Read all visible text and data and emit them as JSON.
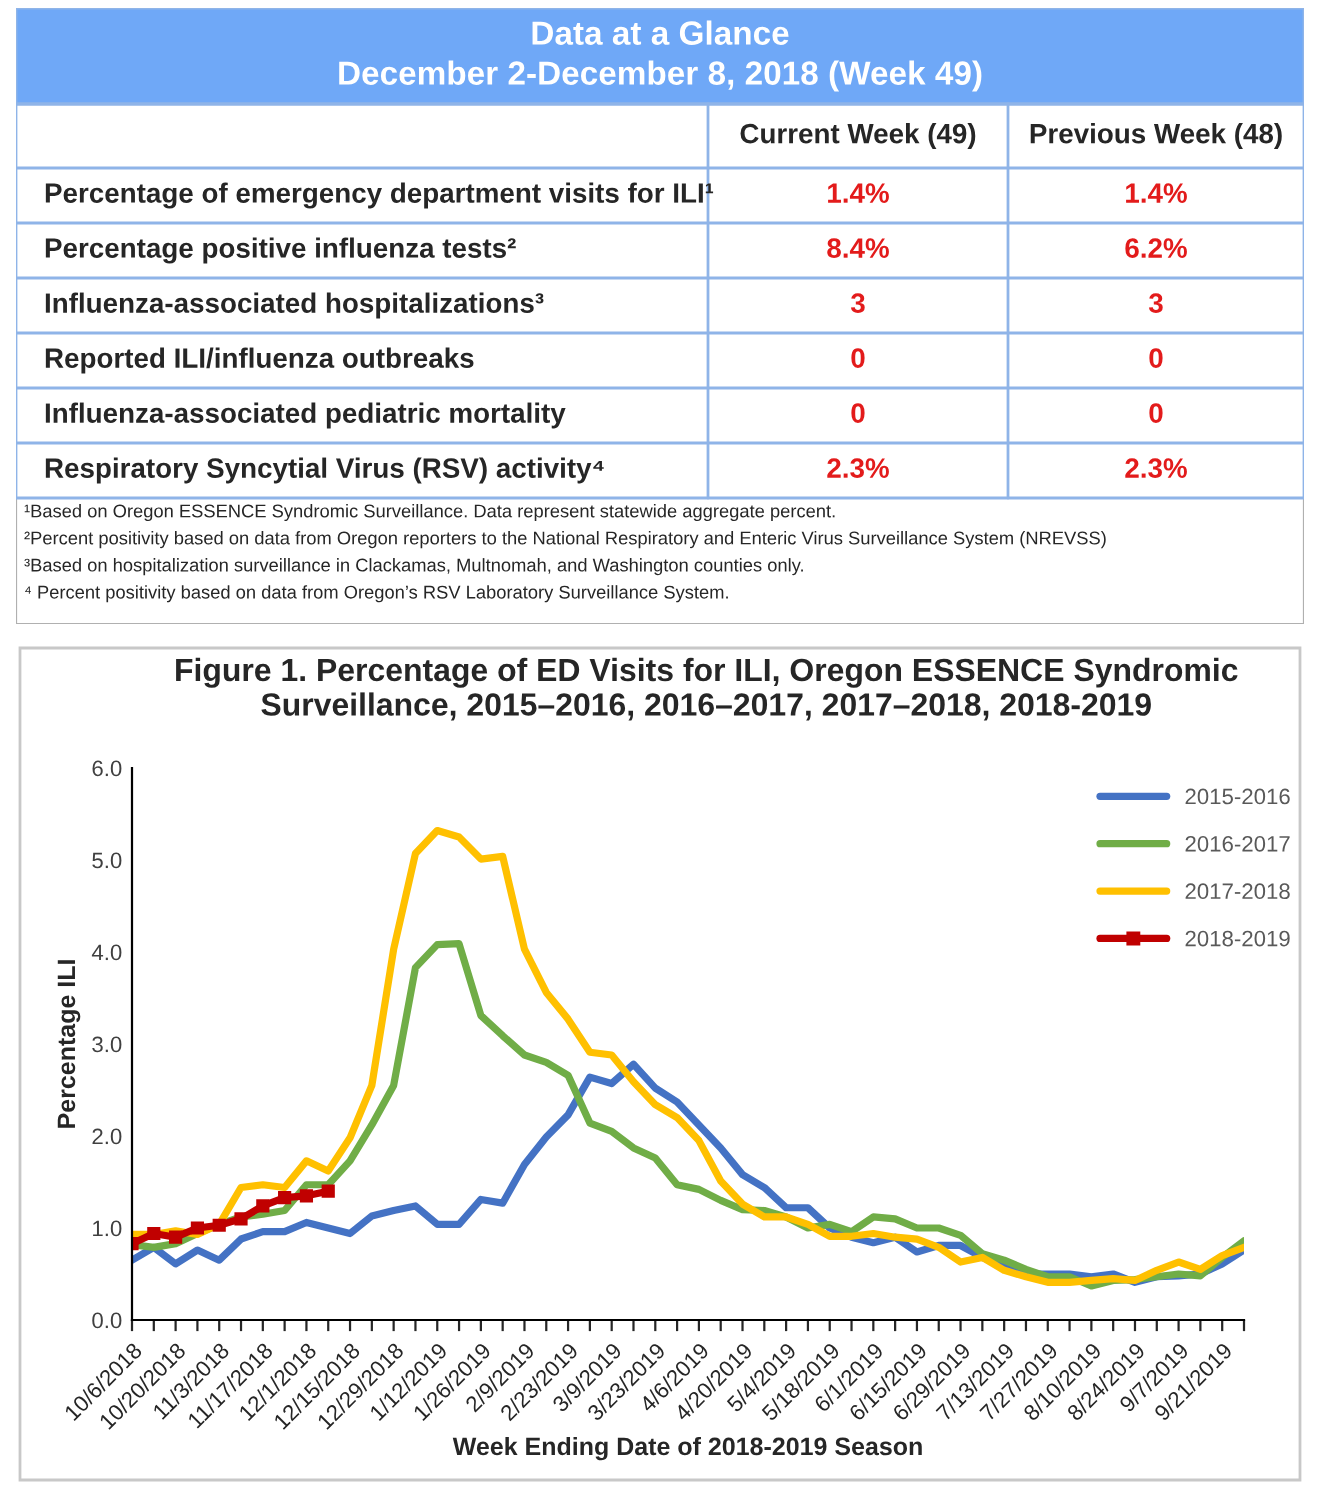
{
  "chart_data": [
    {
      "type": "other",
      "title": "Data at a Glance",
      "subtitle": "December 2-December 8, 2018 (Week 49)",
      "categories": [
        null,
        "Current Week (49)",
        "Previous Week (48)"
      ],
      "y_categories": [
        "Percentage of emergency department visits for ILI¹",
        "Percentage positive influenza tests²",
        "Influenza-associated hospitalizations³",
        "Reported ILI/influenza outbreaks",
        "Influenza-associated pediatric mortality",
        "Respiratory Syncytial Virus (RSV) activity⁴"
      ],
      "cell_labels": [
        [
          "1.4%",
          "1.4%"
        ],
        [
          "8.4%",
          "6.2%"
        ],
        [
          "3",
          "3"
        ],
        [
          "0",
          "0"
        ],
        [
          "0",
          "0"
        ],
        [
          "2.3%",
          "2.3%"
        ]
      ],
      "annotations": [
        "¹Based on Oregon ESSENCE Syndromic Surveillance. Data represent statewide aggregate percent.",
        "²Percent positivity based on data from Oregon reporters to the National Respiratory and Enteric Virus Surveillance System (NREVSS)",
        "³Based on hospitalization surveillance in Clackamas, Multnomah, and Washington counties only.",
        "⁴ Percent positivity based on data from Oregon’s RSV Laboratory Surveillance System."
      ]
    },
    {
      "type": "line",
      "title": "Figure 1. Percentage of ED Visits for ILI, Oregon ESSENCE Syndromic Surveillance, 2015–2016, 2016–2017, 2017–2018, 2018-2019",
      "xlabel": "Week Ending Date of 2018-2019 Season",
      "ylabel": "Percentage ILI",
      "categories": [
        "10/6/2018",
        null,
        "10/20/2018",
        null,
        "11/3/2018",
        null,
        "11/17/2018",
        null,
        "12/1/2018",
        null,
        "12/15/2018",
        null,
        "12/29/2018",
        null,
        "1/12/2019",
        null,
        "1/26/2019",
        null,
        "2/9/2019",
        null,
        "2/23/2019",
        null,
        "3/9/2019",
        null,
        "3/23/2019",
        null,
        "4/6/2019",
        null,
        "4/20/2019",
        null,
        "5/4/2019",
        null,
        "5/18/2019",
        null,
        "6/1/2019",
        null,
        "6/15/2019",
        null,
        "6/29/2019",
        null,
        "7/13/2019",
        null,
        "7/27/2019",
        null,
        "8/10/2019",
        null,
        "8/24/2019",
        null,
        "9/7/2019",
        null,
        "9/21/2019",
        null
      ],
      "ylim": [
        0,
        6
      ],
      "yticks": [
        {
          "value": 0,
          "label": "0.0"
        },
        {
          "value": 1,
          "label": "1.0"
        },
        {
          "value": 2,
          "label": "2.0"
        },
        {
          "value": 3,
          "label": "3.0"
        },
        {
          "value": 4,
          "label": "4.0"
        },
        {
          "value": 5,
          "label": "5.0"
        },
        {
          "value": 6,
          "label": "6.0"
        }
      ],
      "grid": false,
      "legend": "top right",
      "line_style": "solid",
      "series": [
        {
          "name": "2015-2016",
          "color": "#4472c4",
          "marker": "none",
          "values": [
            0.65,
            0.79,
            0.61,
            0.76,
            0.65,
            0.88,
            0.96,
            0.96,
            1.06,
            1.0,
            0.94,
            1.13,
            1.19,
            1.24,
            1.04,
            1.04,
            1.31,
            1.27,
            1.69,
            1.99,
            2.23,
            2.64,
            2.57,
            2.78,
            2.52,
            2.37,
            2.12,
            1.87,
            1.58,
            1.44,
            1.22,
            1.22,
            1.0,
            0.9,
            0.84,
            0.9,
            0.74,
            0.81,
            0.81,
            0.68,
            0.58,
            0.5,
            0.5,
            0.5,
            0.47,
            0.5,
            0.41,
            0.47,
            0.48,
            0.5,
            0.61,
            0.76
          ]
        },
        {
          "name": "2016-2017",
          "color": "#70ad47",
          "marker": "none",
          "values": [
            0.82,
            0.79,
            0.83,
            0.94,
            1.04,
            1.12,
            1.15,
            1.19,
            1.47,
            1.47,
            1.73,
            2.12,
            2.55,
            3.83,
            4.08,
            4.09,
            3.31,
            3.09,
            2.88,
            2.8,
            2.66,
            2.14,
            2.05,
            1.87,
            1.76,
            1.47,
            1.42,
            1.3,
            1.2,
            1.19,
            1.12,
            1.0,
            1.04,
            0.96,
            1.12,
            1.1,
            1.0,
            1.0,
            0.92,
            0.72,
            0.65,
            0.55,
            0.47,
            0.47,
            0.37,
            0.43,
            0.44,
            0.47,
            0.5,
            0.48,
            0.68,
            0.86
          ]
        },
        {
          "name": "2017-2018",
          "color": "#ffc000",
          "marker": "none",
          "values": [
            0.93,
            0.93,
            0.97,
            0.93,
            1.04,
            1.44,
            1.47,
            1.44,
            1.73,
            1.62,
            1.98,
            2.55,
            4.03,
            5.07,
            5.32,
            5.25,
            5.01,
            5.04,
            4.03,
            3.56,
            3.27,
            2.91,
            2.88,
            2.59,
            2.34,
            2.2,
            1.95,
            1.51,
            1.26,
            1.12,
            1.12,
            1.04,
            0.91,
            0.91,
            0.94,
            0.9,
            0.88,
            0.79,
            0.63,
            0.68,
            0.54,
            0.47,
            0.41,
            0.41,
            0.43,
            0.45,
            0.43,
            0.54,
            0.63,
            0.55,
            0.7,
            0.79
          ]
        },
        {
          "name": "2018-2019",
          "color": "#c00000",
          "marker": "square",
          "values": [
            0.83,
            0.94,
            0.9,
            1.0,
            1.03,
            1.1,
            1.24,
            1.33,
            1.35,
            1.4,
            null,
            null,
            null,
            null,
            null,
            null,
            null,
            null,
            null,
            null,
            null,
            null,
            null,
            null,
            null,
            null,
            null,
            null,
            null,
            null,
            null,
            null,
            null,
            null,
            null,
            null,
            null,
            null,
            null,
            null,
            null,
            null,
            null,
            null,
            null,
            null,
            null,
            null,
            null,
            null,
            null,
            null
          ]
        }
      ]
    }
  ]
}
